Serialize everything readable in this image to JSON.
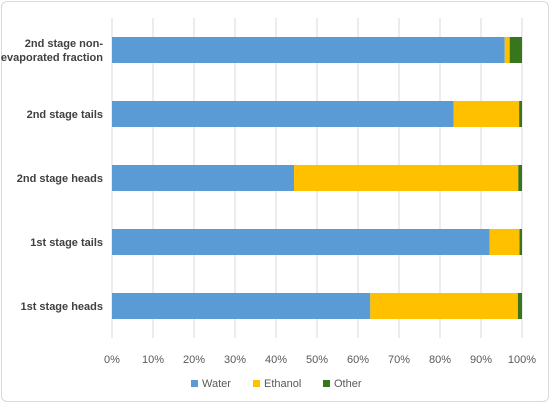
{
  "chart_data": {
    "type": "bar",
    "orientation": "horizontal",
    "stacked": "percent",
    "categories": [
      "2nd stage non-evaporated fraction",
      "2nd stage tails",
      "2nd stage heads",
      "1st stage tails",
      "1st stage heads"
    ],
    "category_lines": [
      [
        "2nd stage non-",
        "evaporated fraction"
      ],
      [
        "2nd stage tails"
      ],
      [
        "2nd stage heads"
      ],
      [
        "1st stage tails"
      ],
      [
        "1st stage heads"
      ]
    ],
    "series": [
      {
        "name": "Water",
        "color": "#5b9bd5",
        "values": [
          95.8,
          83.3,
          44.4,
          92.1,
          63.0
        ]
      },
      {
        "name": "Ethanol",
        "color": "#ffc000",
        "values": [
          1.2,
          16.0,
          54.7,
          7.3,
          36.0
        ]
      },
      {
        "name": "Other",
        "color": "#38761d",
        "values": [
          3.0,
          0.7,
          0.9,
          0.6,
          1.0
        ]
      }
    ],
    "xlim": [
      0,
      100
    ],
    "xticks": [
      "0%",
      "10%",
      "20%",
      "30%",
      "40%",
      "50%",
      "60%",
      "70%",
      "80%",
      "90%",
      "100%"
    ],
    "grid": true,
    "legend_position": "bottom"
  }
}
